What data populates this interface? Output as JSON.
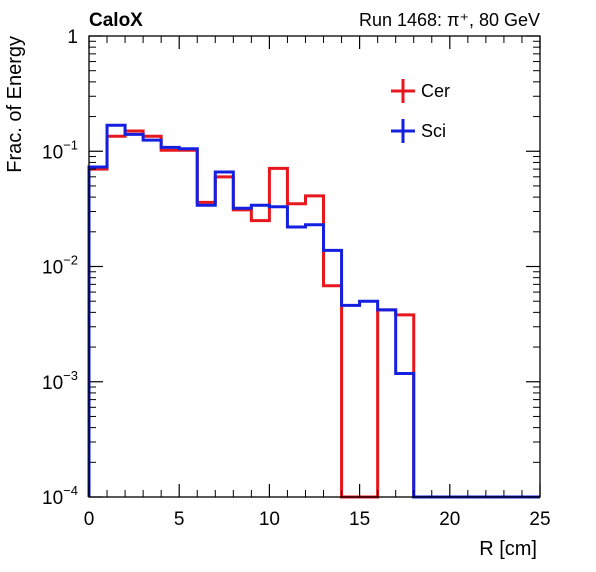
{
  "chart_data": {
    "type": "line",
    "title_left": "CaloX",
    "title_right": "Run 1468:   π⁺, 80 GeV",
    "xlabel": "R [cm]",
    "ylabel": "Frac. of Energy",
    "xlim": [
      0,
      25
    ],
    "ylim": [
      0.0001,
      1
    ],
    "yscale": "log",
    "grid": false,
    "legend_position": "top-right",
    "x_ticks": [
      "0",
      "5",
      "10",
      "15",
      "20",
      "25"
    ],
    "y_ticks": [
      {
        "base": "10",
        "exp": "−4"
      },
      {
        "base": "10",
        "exp": "−3"
      },
      {
        "base": "10",
        "exp": "−2"
      },
      {
        "base": "10",
        "exp": "−1"
      },
      {
        "base": "1",
        "exp": ""
      }
    ],
    "bin_edges": [
      0,
      1,
      2,
      3,
      4,
      5,
      6,
      7,
      8,
      9,
      10,
      11,
      12,
      13,
      14,
      15,
      16,
      17,
      18,
      19,
      20,
      21,
      22,
      23,
      24,
      25
    ],
    "series": [
      {
        "name": "Cer",
        "color": "#e8171d",
        "values": [
          0.07,
          0.135,
          0.15,
          0.135,
          0.102,
          0.102,
          0.036,
          0.06,
          0.031,
          0.025,
          0.071,
          0.035,
          0.041,
          0.0068,
          0.0001,
          0.0001,
          0.0042,
          0.0038,
          0.0001,
          0.0001,
          0.0001,
          0.0001,
          0.0001,
          0.0001,
          0.0001
        ]
      },
      {
        "name": "Sci",
        "color": "#1420e0",
        "values": [
          0.073,
          0.168,
          0.14,
          0.125,
          0.108,
          0.105,
          0.034,
          0.066,
          0.032,
          0.034,
          0.033,
          0.022,
          0.023,
          0.0138,
          0.0046,
          0.005,
          0.0042,
          0.00118,
          0.0001,
          0.0001,
          0.0001,
          0.0001,
          0.0001,
          0.0001,
          0.0001
        ]
      }
    ]
  }
}
